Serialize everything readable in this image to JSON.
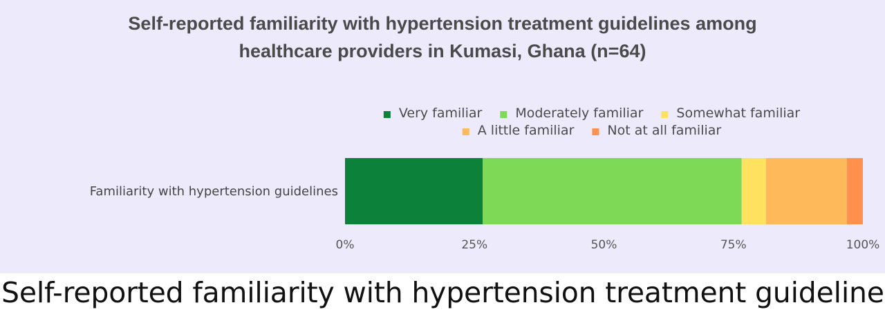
{
  "chart_data": {
    "type": "bar",
    "orientation": "horizontal",
    "stacked": true,
    "title": "Self-reported familiarity with  hypertension treatment guidelines among healthcare providers in Kumasi, Ghana (n=64)",
    "title_lines": [
      "Self-reported familiarity with  hypertension treatment guidelines among",
      "healthcare providers in Kumasi, Ghana (n=64)"
    ],
    "categories": [
      "Familiarity with hypertension guidelines"
    ],
    "series": [
      {
        "name": "Very familiar",
        "color": "#0b8139",
        "values": [
          26.6
        ]
      },
      {
        "name": "Moderately familiar",
        "color": "#7ed957",
        "values": [
          50.0
        ]
      },
      {
        "name": "Somewhat familiar",
        "color": "#fde15f",
        "values": [
          4.7
        ]
      },
      {
        "name": "A little familiar",
        "color": "#feb95a",
        "values": [
          15.6
        ]
      },
      {
        "name": "Not at all familiar",
        "color": "#ff914d",
        "values": [
          3.1
        ]
      }
    ],
    "xlim": [
      0,
      100
    ],
    "x_ticks": [
      "0%",
      "25%",
      "50%",
      "75%",
      "100%"
    ],
    "legend_position": "top-right",
    "grid": false
  },
  "caption": "Self-reported familiarity with hypertension treatment guidelines"
}
